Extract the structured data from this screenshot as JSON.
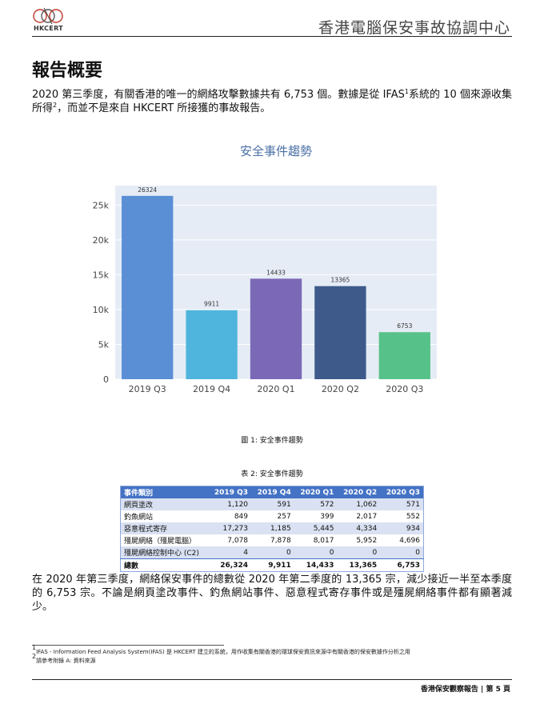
{
  "header": {
    "logo_text": "HKCERT",
    "org_name": "香港電腦保安事故協調中心"
  },
  "page_title": "報告概要",
  "intro": {
    "part1": "2020 第三季度，有關香港的唯一的網絡攻擊數據共有 6,753 個。數據是從 IFAS",
    "sup1": "1",
    "part2": "系統的 10 個來源收集所得",
    "sup2": "2",
    "part3": "，而並不是來自 HKCERT 所接獲的事故報告。"
  },
  "chart_data": {
    "type": "bar",
    "title": "安全事件趨勢",
    "categories": [
      "2019 Q3",
      "2019 Q4",
      "2020 Q1",
      "2020 Q2",
      "2020 Q3"
    ],
    "values": [
      26324,
      9911,
      14433,
      13365,
      6753
    ],
    "data_labels": [
      "26324",
      "9911",
      "14433",
      "13365",
      "6753"
    ],
    "colors": [
      "#5a8fd6",
      "#4fb5dc",
      "#7b68b6",
      "#3d5a8a",
      "#56c28a"
    ],
    "ylim": [
      0,
      27800
    ],
    "yticks": [
      0,
      5000,
      10000,
      15000,
      20000,
      25000
    ],
    "ytick_labels": [
      "0",
      "5k",
      "10k",
      "15k",
      "20k",
      "25k"
    ],
    "grid": true,
    "plot_background": "#e5ecf6",
    "title_color": "#4a6fa5"
  },
  "figure_caption": "圖 1: 安全事件趨勢",
  "table_caption": "表 2: 安全事件趨勢",
  "table": {
    "headers": [
      "事件類別",
      "2019 Q3",
      "2019 Q4",
      "2020 Q1",
      "2020 Q2",
      "2020 Q3"
    ],
    "rows": [
      [
        "網頁塗改",
        "1,120",
        "591",
        "572",
        "1,062",
        "571"
      ],
      [
        "釣魚網站",
        "849",
        "257",
        "399",
        "2,017",
        "552"
      ],
      [
        "惡意程式寄存",
        "17,273",
        "1,185",
        "5,445",
        "4,334",
        "934"
      ],
      [
        "殭屍網絡（殭屍電腦）",
        "7,078",
        "7,878",
        "8,017",
        "5,952",
        "4,696"
      ],
      [
        "殭屍網絡控制中心 (C2)",
        "4",
        "0",
        "0",
        "0",
        "0"
      ]
    ],
    "total": [
      "總數",
      "26,324",
      "9,911",
      "14,433",
      "13,365",
      "6,753"
    ]
  },
  "summary": "在 2020 年第三季度，網絡保安事件的總數從 2020 年第二季度的 13,365 宗，減少接近一半至本季度的 6,753 宗。不論是網頁塗改事件、釣魚網站事件、惡意程式寄存事件或是殭屍網絡事件都有顯著減少。",
  "footnotes": {
    "fn1_mark": "1",
    "fn1": "IFAS - Information Feed Analysis System(IFAS) 是 HKCERT 建立的系統，用作收集有關香港的環球保安資訊來源中有關香港的保安數據作分析之用",
    "fn2_mark": "2",
    "fn2": "請參考附錄 A: 資料來源"
  },
  "footer": {
    "text": "香港保安觀察報告 | 第 5 頁"
  }
}
